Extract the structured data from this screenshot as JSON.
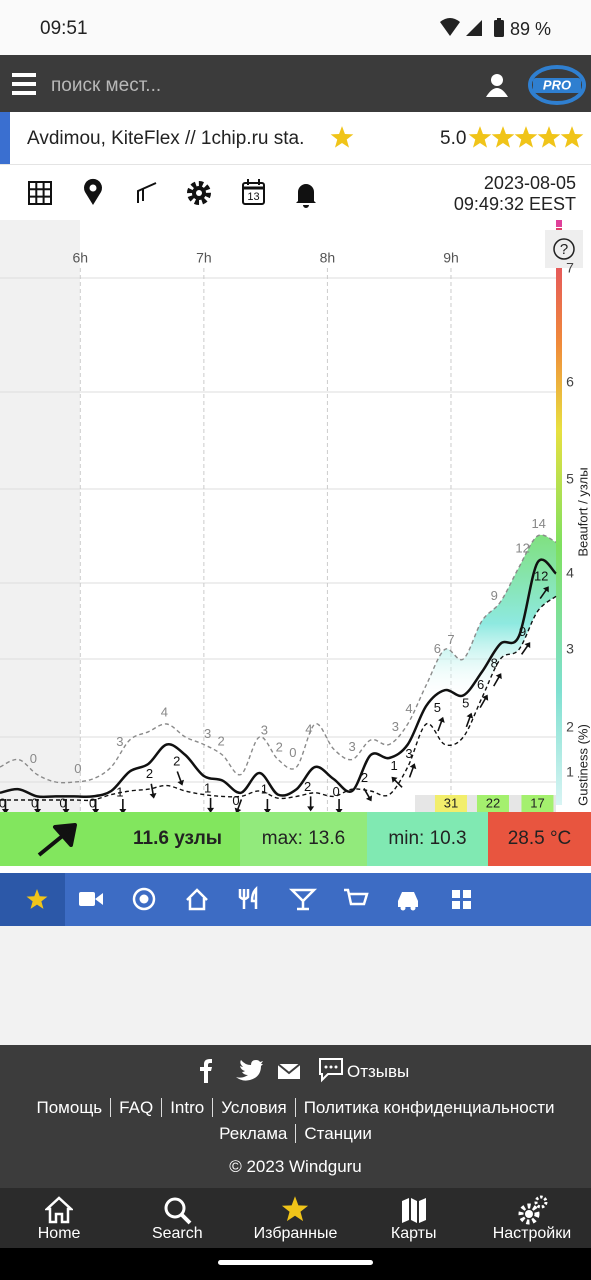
{
  "status_bar": {
    "time": "09:51",
    "battery": "89 %"
  },
  "header": {
    "search_placeholder": "поиск мест...",
    "pro_badge": "PRO"
  },
  "station": {
    "name": "Avdimou, KiteFlex // 1chip.ru sta.",
    "rating": "5.0"
  },
  "toolbar": {
    "calendar_day": "13"
  },
  "timestamp": {
    "date": "2023-08-05",
    "time": "09:49:32 EEST"
  },
  "chart_data": {
    "type": "line",
    "x": [
      5.35,
      5.5,
      5.65,
      5.8,
      5.95,
      6.1,
      6.25,
      6.4,
      6.55,
      6.7,
      6.85,
      7.0,
      7.15,
      7.3,
      7.45,
      7.6,
      7.75,
      7.9,
      8.05,
      8.2,
      8.35,
      8.5,
      8.65,
      8.8,
      8.95,
      9.1,
      9.25,
      9.4,
      9.55,
      9.7,
      9.85
    ],
    "xlim": [
      5.35,
      9.85
    ],
    "xticks": [
      {
        "value": 6,
        "label": "6h"
      },
      {
        "value": 7,
        "label": "7h"
      },
      {
        "value": 8,
        "label": "8h"
      },
      {
        "value": 9,
        "label": "9h"
      }
    ],
    "ylim": [
      0,
      30
    ],
    "yticks": [
      1,
      {
        "value": 4,
        "label": "2"
      },
      {
        "value": 7,
        "label": "3"
      },
      {
        "value": 11,
        "label": "4"
      },
      {
        "value": 17,
        "label": "5"
      },
      {
        "value": 22,
        "label": "6"
      },
      {
        "value": 28,
        "label": "7"
      }
    ],
    "ylabel": "Beaufort / узлы",
    "y2label": "Gustiness (%)",
    "help": "?",
    "grid": true,
    "series": [
      {
        "color": "#8a8a8a",
        "style": "dashed",
        "values": [
          2,
          2.5,
          1.5,
          1,
          1,
          1.2,
          2,
          3.8,
          4.2,
          4.5,
          4,
          3.5,
          2.8,
          1.5,
          4,
          2.5,
          2,
          4.5,
          3.2,
          2.5,
          3.8,
          3.5,
          4.5,
          6,
          7.5,
          7,
          9,
          10,
          12,
          14,
          13.6
        ]
      },
      {
        "color": "#111111",
        "style": "solid",
        "values": [
          0.4,
          0.6,
          0.2,
          0.2,
          0.2,
          0.2,
          0.5,
          1.7,
          2.2,
          3.5,
          2.8,
          1.4,
          1.1,
          0.4,
          1.6,
          0.3,
          0.6,
          2,
          1.2,
          0.5,
          2.8,
          2.6,
          3.5,
          5.2,
          5.8,
          5.6,
          6.5,
          7.8,
          8.2,
          12.3,
          11.6
        ]
      },
      {
        "color": "#111111",
        "style": "dashed",
        "values": [
          0,
          0,
          0,
          0,
          0,
          0,
          0.3,
          0.5,
          0.6,
          0.8,
          0.5,
          0.3,
          0.2,
          0.2,
          0.5,
          0.1,
          0.2,
          0.4,
          0.2,
          0.6,
          0.5,
          0.3,
          2,
          4.5,
          3.5,
          4,
          5.5,
          7,
          7.5,
          9.5,
          10.3
        ]
      }
    ],
    "gust_labels": {
      "x": [
        5.62,
        5.98,
        6.32,
        6.68,
        7.03,
        7.14,
        7.49,
        7.61,
        7.72,
        7.85,
        8.2,
        8.55,
        8.66,
        8.89,
        9.0,
        9.35,
        9.58,
        9.71
      ],
      "values": [
        0,
        0,
        3,
        4,
        3,
        2,
        3,
        2,
        0,
        4,
        3,
        3,
        4,
        6,
        7,
        9,
        12,
        14
      ]
    },
    "avg_labels": {
      "x": [
        5.37,
        5.63,
        5.86,
        6.1,
        6.32,
        6.56,
        6.78,
        7.03,
        7.26,
        7.49,
        7.84,
        8.07,
        8.3,
        8.54,
        8.66,
        8.89,
        9.12,
        9.24,
        9.35,
        9.58,
        9.73
      ],
      "values": [
        0,
        0,
        0,
        0,
        1,
        2,
        2,
        1,
        0,
        1,
        2,
        0,
        2,
        1,
        3,
        5,
        5,
        6,
        8,
        9,
        12
      ],
      "directions": [
        180,
        180,
        180,
        180,
        180,
        170,
        160,
        180,
        200,
        180,
        180,
        180,
        150,
        315,
        20,
        20,
        20,
        30,
        30,
        35,
        35
      ]
    },
    "gustiness": {
      "x": [
        9.0,
        9.34,
        9.7
      ],
      "values": [
        31,
        22,
        17
      ],
      "colors": [
        "#f2ee6c",
        "#a4f06e",
        "#a4f06e"
      ]
    }
  },
  "current": {
    "speed": "11.6 узлы",
    "max": "max: 13.6",
    "min": "min: 10.3",
    "temperature": "28.5 °C"
  },
  "footer": {
    "feedback": "Отзывы",
    "links": [
      "Помощь",
      "FAQ",
      "Intro",
      "Условия",
      "Политика конфиденциальности",
      "Реклама",
      "Станции"
    ],
    "copyright": "© 2023 Windguru"
  },
  "bottom_nav": [
    "Home",
    "Search",
    "Избранные",
    "Карты",
    "Настройки"
  ]
}
